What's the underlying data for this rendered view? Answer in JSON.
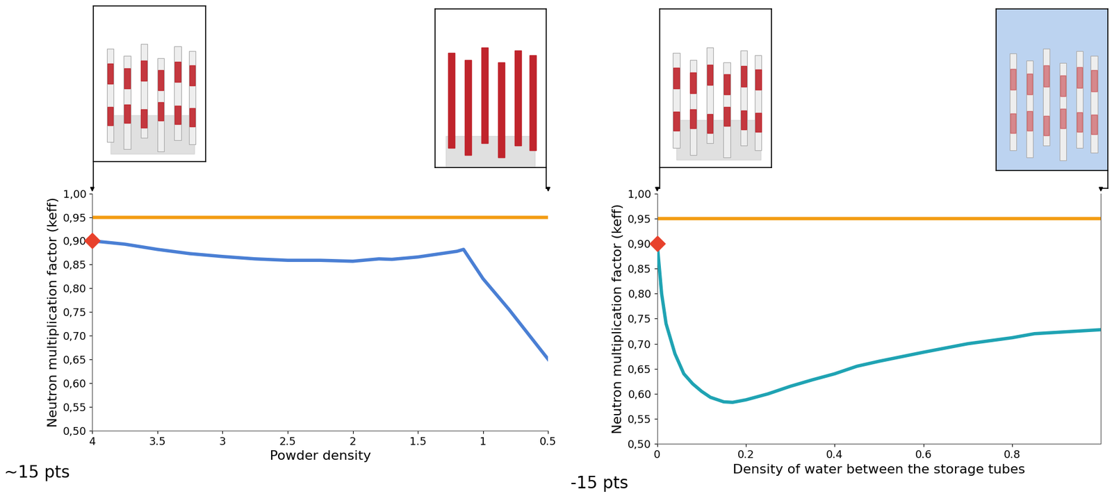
{
  "chart_data": [
    {
      "type": "line",
      "x_label": "Powder density",
      "y_label": "Neutron multiplication factor (keff)",
      "x": [
        4,
        3.75,
        3.5,
        3.25,
        3,
        2.75,
        2.5,
        2.25,
        2,
        1.8,
        1.7,
        1.5,
        1.3,
        1.2,
        1.15,
        1,
        0.8,
        0.5
      ],
      "values": [
        0.9,
        0.893,
        0.882,
        0.873,
        0.867,
        0.862,
        0.859,
        0.859,
        0.857,
        0.862,
        0.861,
        0.866,
        0.874,
        0.878,
        0.882,
        0.82,
        0.755,
        0.65
      ],
      "color": "#4a7fd4",
      "threshold": {
        "value": 0.95,
        "color": "#f39c12"
      },
      "highlight": {
        "x": 4,
        "y": 0.9,
        "color": "#e8412c",
        "marker": "diamond"
      },
      "xlim": [
        4,
        0.5
      ],
      "xticks": [
        4,
        3.5,
        3,
        2.5,
        2,
        1.5,
        1,
        0.5
      ],
      "ylim": [
        0.5,
        1.0
      ],
      "yticks": [
        {
          "value": 0.5,
          "label": "0,50"
        },
        {
          "value": 0.55,
          "label": "0,55"
        },
        {
          "value": 0.6,
          "label": "0,60"
        },
        {
          "value": 0.65,
          "label": "0,65"
        },
        {
          "value": 0.7,
          "label": "0,70"
        },
        {
          "value": 0.75,
          "label": "0,75"
        },
        {
          "value": 0.8,
          "label": "0,80"
        },
        {
          "value": 0.85,
          "label": "0,85"
        },
        {
          "value": 0.9,
          "label": "0,90"
        },
        {
          "value": 0.95,
          "label": "0,95"
        },
        {
          "value": 1.0,
          "label": "1,00"
        }
      ],
      "annotations": [
        "~15 pts"
      ]
    },
    {
      "type": "line",
      "x_label": "Density of water between the storage tubes",
      "y_label": "Neutron multiplication factor (keff)",
      "x": [
        0,
        0.01,
        0.02,
        0.04,
        0.06,
        0.08,
        0.1,
        0.12,
        0.15,
        0.17,
        0.2,
        0.25,
        0.3,
        0.35,
        0.4,
        0.45,
        0.5,
        0.6,
        0.7,
        0.8,
        0.85,
        1.0
      ],
      "values": [
        0.9,
        0.8,
        0.74,
        0.68,
        0.64,
        0.62,
        0.605,
        0.593,
        0.584,
        0.583,
        0.588,
        0.6,
        0.615,
        0.628,
        0.64,
        0.655,
        0.665,
        0.683,
        0.7,
        0.712,
        0.72,
        0.728
      ],
      "color": "#1fa3b3",
      "threshold": {
        "value": 0.95,
        "color": "#f39c12"
      },
      "highlight": {
        "x": 0,
        "y": 0.9,
        "color": "#e8412c",
        "marker": "diamond"
      },
      "xlim": [
        0,
        1.0
      ],
      "xticks": [
        0,
        0.2,
        0.4,
        0.6,
        0.8
      ],
      "ylim": [
        0.5,
        1.0
      ],
      "yticks": [
        {
          "value": 0.5,
          "label": "0,50"
        },
        {
          "value": 0.55,
          "label": "0,55"
        },
        {
          "value": 0.6,
          "label": "0,60"
        },
        {
          "value": 0.65,
          "label": "0,65"
        },
        {
          "value": 0.7,
          "label": "0,70"
        },
        {
          "value": 0.75,
          "label": "0,75"
        },
        {
          "value": 0.8,
          "label": "0,80"
        },
        {
          "value": 0.85,
          "label": "0,85"
        },
        {
          "value": 0.9,
          "label": "0,90"
        },
        {
          "value": 0.95,
          "label": "0,95"
        },
        {
          "value": 1.0,
          "label": "1,00"
        }
      ],
      "annotations": [
        "-15 pts"
      ]
    }
  ]
}
